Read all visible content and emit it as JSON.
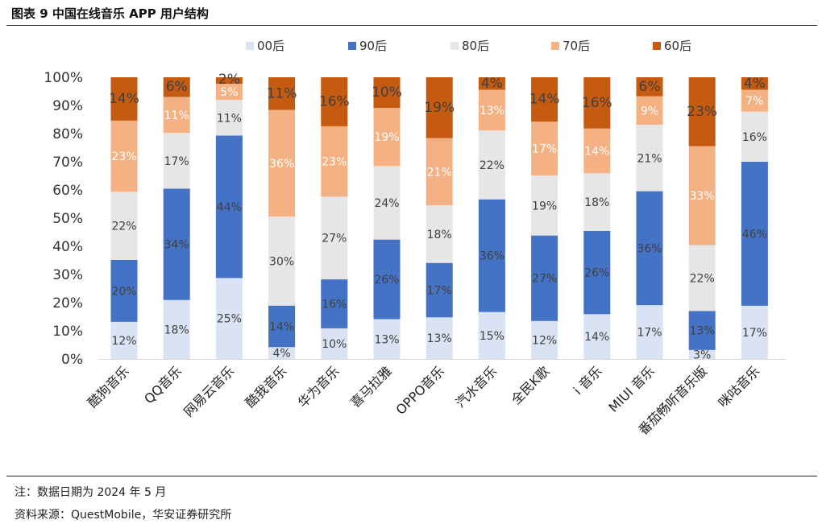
{
  "figure_title": "图表 9 中国在线音乐 APP 用户结构",
  "footer": {
    "note": "注：数据日期为 2024 年 5 月",
    "source": "资料来源：QuestMobile，华安证券研究所"
  },
  "colors": {
    "00后": "#dae3f3",
    "90后": "#4472c4",
    "80后": "#e7e6e6",
    "70后": "#f4b183",
    "60后": "#c55a11"
  },
  "label_colors": {
    "00后": "#404040",
    "90后": "#404040",
    "80后": "#404040",
    "70后": "#ffffff",
    "60后": "#404040"
  },
  "chart_data": {
    "type": "bar",
    "stacked": true,
    "percent": true,
    "title": "",
    "xlabel": "",
    "ylabel": "",
    "ylim": [
      0,
      100
    ],
    "yticks": [
      "0%",
      "10%",
      "20%",
      "30%",
      "40%",
      "50%",
      "60%",
      "70%",
      "80%",
      "90%",
      "100%"
    ],
    "legend_position": "top",
    "categories": [
      "酷狗音乐",
      "QQ音乐",
      "网易云音乐",
      "酷我音乐",
      "华为音乐",
      "喜马拉雅",
      "OPPO音乐",
      "汽水音乐",
      "全民K歌",
      "i 音乐",
      "MIUI 音乐",
      "番茄畅听音乐版",
      "咪咕音乐"
    ],
    "series": [
      {
        "name": "00后",
        "values": [
          12,
          18,
          25,
          4,
          10,
          13,
          13,
          15,
          12,
          14,
          17,
          3,
          17
        ]
      },
      {
        "name": "90后",
        "values": [
          20,
          34,
          44,
          14,
          16,
          26,
          17,
          36,
          27,
          26,
          36,
          13,
          46
        ]
      },
      {
        "name": "80后",
        "values": [
          22,
          17,
          11,
          30,
          27,
          24,
          18,
          22,
          19,
          18,
          21,
          22,
          16
        ]
      },
      {
        "name": "70后",
        "values": [
          23,
          11,
          5,
          36,
          23,
          19,
          21,
          13,
          17,
          14,
          9,
          33,
          7
        ]
      },
      {
        "name": "60后",
        "values": [
          14,
          6,
          2,
          11,
          16,
          10,
          19,
          4,
          14,
          16,
          6,
          23,
          4
        ]
      }
    ]
  }
}
